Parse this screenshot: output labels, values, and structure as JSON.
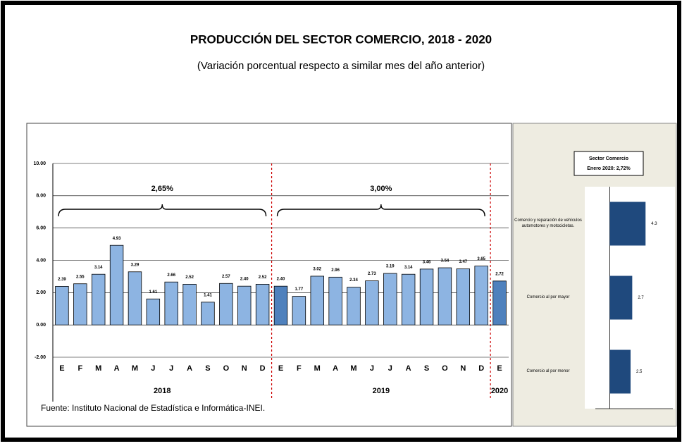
{
  "chart_data": [
    {
      "type": "bar",
      "title": "PRODUCCIÓN DEL SECTOR COMERCIO, 2018 - 2020",
      "subtitle": "(Variación porcentual respecto a similar mes del año anterior)",
      "source": "Fuente: Instituto Nacional de Estadística e Informática-INEI.",
      "ylim": [
        -2,
        10
      ],
      "yticks": [
        {
          "value": -2,
          "label": "-2.00"
        },
        {
          "value": 0,
          "label": "0.00"
        },
        {
          "value": 2,
          "label": "2.00"
        },
        {
          "value": 4,
          "label": "4.00"
        },
        {
          "value": 6,
          "label": "6.00"
        },
        {
          "value": 8,
          "label": "8.00"
        },
        {
          "value": 10,
          "label": "10.00"
        }
      ],
      "groups": [
        {
          "name": "2018",
          "annotation": "2,65%",
          "categories": [
            "E",
            "F",
            "M",
            "A",
            "M",
            "J",
            "J",
            "A",
            "S",
            "O",
            "N",
            "D"
          ],
          "values": [
            2.39,
            2.55,
            3.14,
            4.93,
            3.29,
            1.61,
            2.66,
            2.52,
            1.41,
            2.57,
            2.4,
            2.52
          ],
          "value_labels": [
            "2.39",
            "2.55",
            "3.14",
            "4.93",
            "3.29",
            "1.61",
            "2.66",
            "2.52",
            "1.41",
            "2.57",
            "2.40",
            "2.52"
          ],
          "colors": [
            "#8db4e2",
            "#8db4e2",
            "#8db4e2",
            "#8db4e2",
            "#8db4e2",
            "#8db4e2",
            "#8db4e2",
            "#8db4e2",
            "#8db4e2",
            "#8db4e2",
            "#8db4e2",
            "#8db4e2"
          ]
        },
        {
          "name": "2019",
          "annotation": "3,00%",
          "categories": [
            "E",
            "F",
            "M",
            "A",
            "M",
            "J",
            "J",
            "A",
            "S",
            "O",
            "N",
            "D"
          ],
          "values": [
            2.4,
            1.77,
            3.02,
            2.96,
            2.34,
            2.73,
            3.19,
            3.14,
            3.46,
            3.54,
            3.47,
            3.65
          ],
          "value_labels": [
            "2.40",
            "1.77",
            "3.02",
            "2.96",
            "2.34",
            "2.73",
            "3.19",
            "3.14",
            "3.46",
            "3.54",
            "3.47",
            "3.65"
          ],
          "colors": [
            "#4f81bd",
            "#8db4e2",
            "#8db4e2",
            "#8db4e2",
            "#8db4e2",
            "#8db4e2",
            "#8db4e2",
            "#8db4e2",
            "#8db4e2",
            "#8db4e2",
            "#8db4e2",
            "#8db4e2"
          ]
        },
        {
          "name": "2020",
          "categories": [
            "E"
          ],
          "values": [
            2.72
          ],
          "value_labels": [
            "2.72"
          ],
          "colors": [
            "#4f81bd"
          ]
        }
      ]
    },
    {
      "type": "hbar",
      "title": "Sector Comercio",
      "subtitle": "Enero 2020: 2,72%",
      "categories": [
        "Comercio y reparación de vehículos automotores y motocicletas.",
        "Comercio al por mayor",
        "Comercio al por menor"
      ],
      "values": [
        4.3,
        2.7,
        2.5
      ],
      "color": "#1f497d",
      "xlim": [
        -3,
        8
      ]
    }
  ]
}
